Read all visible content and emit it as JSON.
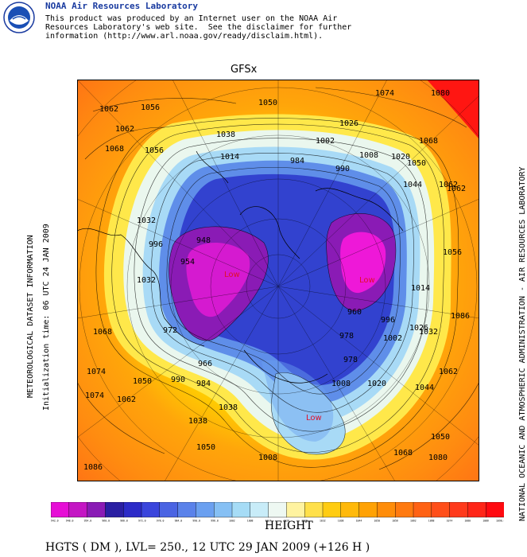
{
  "header": {
    "lab_title": "NOAA Air Resources Laboratory",
    "disclaimer_lines": [
      "This product was produced by an Internet user on the NOAA Air",
      "Resources Laboratory's web site.  See the disclaimer for further",
      "information (http://www.arl.noaa.gov/ready/disclaim.html)."
    ],
    "logo_icon": "noaa-logo-icon"
  },
  "map": {
    "model_label": "GFSx",
    "left_label": "METEOROLOGICAL DATASET INFORMATION",
    "init_label": "Initialization time: 06 UTC 24 JAN 2009",
    "right_label": "NATIONAL OCEANIC AND ATMOSPHERIC ADMINISTRATION - AIR RESOURCES LABORATORY",
    "contour_labels": [
      "1062",
      "1056",
      "1074",
      "1080",
      "1062",
      "1068",
      "1050",
      "1056",
      "1068",
      "1038",
      "1026",
      "1062",
      "1044",
      "1032",
      "1014",
      "1002",
      "990",
      "984",
      "996",
      "1008",
      "1020",
      "1032",
      "1050",
      "1062",
      "1068",
      "1086",
      "1074",
      "1056",
      "1074",
      "1062",
      "1050",
      "1032",
      "1014",
      "1038",
      "1008",
      "1038",
      "1050",
      "972",
      "954",
      "960",
      "948",
      "978",
      "966",
      "1002",
      "984",
      "990",
      "1020",
      "1008",
      "978",
      "996",
      "1026",
      "1044",
      "1062",
      "1050",
      "1068",
      "1080",
      "1086"
    ],
    "low_labels": [
      "Low",
      "Low",
      "Low"
    ]
  },
  "colorbar": {
    "colors": [
      "#e60fd6",
      "#c416c4",
      "#8a1bb5",
      "#2a1fa3",
      "#2c2bc8",
      "#3a45dc",
      "#4a64e3",
      "#5a82ea",
      "#6ba0f0",
      "#86c0f4",
      "#a6dcf6",
      "#c8ecf8",
      "#eef8f2",
      "#fff3a0",
      "#ffe04a",
      "#ffcc11",
      "#ffb90a",
      "#ffa205",
      "#ff8d0a",
      "#ff7a10",
      "#ff6214",
      "#ff4f1a",
      "#ff3a1c",
      "#ff2618",
      "#ff0a10"
    ],
    "tick_labels": [
      "942.0",
      "948.0",
      "954.0",
      "960.0",
      "966.0",
      "972.0",
      "978.0",
      "984.0",
      "990.0",
      "996.0",
      "1002",
      "1008",
      "1014",
      "1020",
      "1026",
      "1032",
      "1038",
      "1044",
      "1050",
      "1056",
      "1062",
      "1068",
      "1074",
      "1080",
      "1086",
      "1090.0"
    ]
  },
  "footer": {
    "field_name": "HEIGHT",
    "info": "HGTS ( DM ),  LVL= 250., 12 UTC 29 JAN 2009 (+126 H )"
  }
}
